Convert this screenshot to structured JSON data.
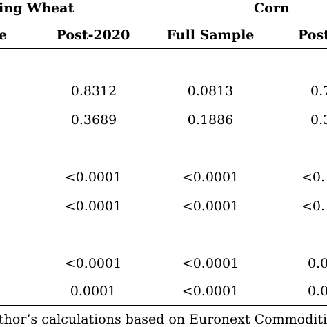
{
  "header": {
    "group_left": "ing Wheat",
    "group_right": "Corn",
    "col_partial": "e",
    "col_post": "Post-2020",
    "col_full": "Full Sample",
    "col_post_cut": "Post"
  },
  "rows": [
    {
      "post": "0.8312",
      "full": "0.0813",
      "cut": "0.7"
    },
    {
      "post": "0.3689",
      "full": "0.1886",
      "cut": "0.3"
    },
    {
      "post": "<0.0001",
      "full": "<0.0001",
      "cut": "<0."
    },
    {
      "post": "<0.0001",
      "full": "<0.0001",
      "cut": "<0."
    },
    {
      "post": "<0.0001",
      "full": "<0.0001",
      "cut": "0.0"
    },
    {
      "post": "0.0001",
      "full": "<0.0001",
      "cut": "0.0"
    }
  ],
  "footnote": "thor’s calculations based on Euronext Commodities"
}
